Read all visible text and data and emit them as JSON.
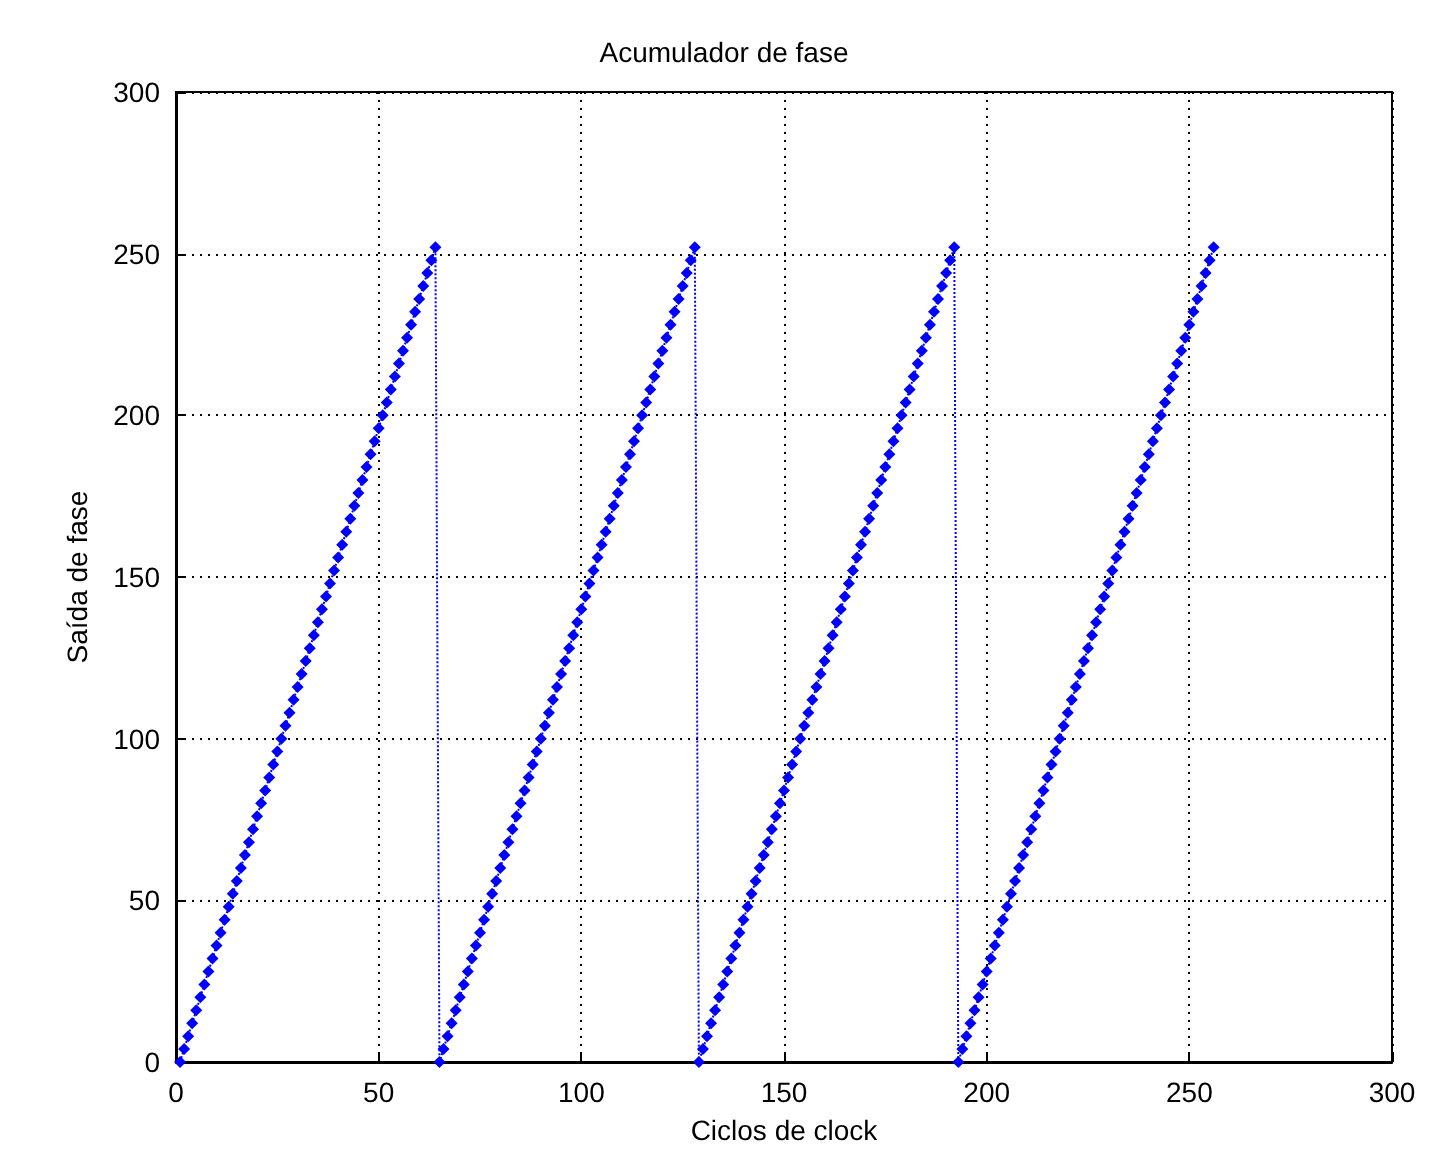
{
  "chart_data": {
    "type": "line",
    "title": "Acumulador de fase",
    "xlabel": "Ciclos de clock",
    "ylabel": "Saída de fase",
    "x": [
      1,
      2,
      3,
      4,
      5,
      6,
      7,
      8,
      9,
      10,
      11,
      12,
      13,
      14,
      15,
      16,
      17,
      18,
      19,
      20,
      21,
      22,
      23,
      24,
      25,
      26,
      27,
      28,
      29,
      30,
      31,
      32,
      33,
      34,
      35,
      36,
      37,
      38,
      39,
      40,
      41,
      42,
      43,
      44,
      45,
      46,
      47,
      48,
      49,
      50,
      51,
      52,
      53,
      54,
      55,
      56,
      57,
      58,
      59,
      60,
      61,
      62,
      63,
      64,
      65,
      66,
      67,
      68,
      69,
      70,
      71,
      72,
      73,
      74,
      75,
      76,
      77,
      78,
      79,
      80,
      81,
      82,
      83,
      84,
      85,
      86,
      87,
      88,
      89,
      90,
      91,
      92,
      93,
      94,
      95,
      96,
      97,
      98,
      99,
      100,
      101,
      102,
      103,
      104,
      105,
      106,
      107,
      108,
      109,
      110,
      111,
      112,
      113,
      114,
      115,
      116,
      117,
      118,
      119,
      120,
      121,
      122,
      123,
      124,
      125,
      126,
      127,
      128,
      129,
      130,
      131,
      132,
      133,
      134,
      135,
      136,
      137,
      138,
      139,
      140,
      141,
      142,
      143,
      144,
      145,
      146,
      147,
      148,
      149,
      150,
      151,
      152,
      153,
      154,
      155,
      156,
      157,
      158,
      159,
      160,
      161,
      162,
      163,
      164,
      165,
      166,
      167,
      168,
      169,
      170,
      171,
      172,
      173,
      174,
      175,
      176,
      177,
      178,
      179,
      180,
      181,
      182,
      183,
      184,
      185,
      186,
      187,
      188,
      189,
      190,
      191,
      192,
      193,
      194,
      195,
      196,
      197,
      198,
      199,
      200,
      201,
      202,
      203,
      204,
      205,
      206,
      207,
      208,
      209,
      210,
      211,
      212,
      213,
      214,
      215,
      216,
      217,
      218,
      219,
      220,
      221,
      222,
      223,
      224,
      225,
      226,
      227,
      228,
      229,
      230,
      231,
      232,
      233,
      234,
      235,
      236,
      237,
      238,
      239,
      240,
      241,
      242,
      243,
      244,
      245,
      246,
      247,
      248,
      249,
      250,
      251,
      252,
      253,
      254,
      255,
      256
    ],
    "series": [
      {
        "color": "#0000ff",
        "values": [
          0,
          4,
          8,
          12,
          16,
          20,
          24,
          28,
          32,
          36,
          40,
          44,
          48,
          52,
          56,
          60,
          64,
          68,
          72,
          76,
          80,
          84,
          88,
          92,
          96,
          100,
          104,
          108,
          112,
          116,
          120,
          124,
          128,
          132,
          136,
          140,
          144,
          148,
          152,
          156,
          160,
          164,
          168,
          172,
          176,
          180,
          184,
          188,
          192,
          196,
          200,
          204,
          208,
          212,
          216,
          220,
          224,
          228,
          232,
          236,
          240,
          244,
          248,
          252,
          0,
          4,
          8,
          12,
          16,
          20,
          24,
          28,
          32,
          36,
          40,
          44,
          48,
          52,
          56,
          60,
          64,
          68,
          72,
          76,
          80,
          84,
          88,
          92,
          96,
          100,
          104,
          108,
          112,
          116,
          120,
          124,
          128,
          132,
          136,
          140,
          144,
          148,
          152,
          156,
          160,
          164,
          168,
          172,
          176,
          180,
          184,
          188,
          192,
          196,
          200,
          204,
          208,
          212,
          216,
          220,
          224,
          228,
          232,
          236,
          240,
          244,
          248,
          252,
          0,
          4,
          8,
          12,
          16,
          20,
          24,
          28,
          32,
          36,
          40,
          44,
          48,
          52,
          56,
          60,
          64,
          68,
          72,
          76,
          80,
          84,
          88,
          92,
          96,
          100,
          104,
          108,
          112,
          116,
          120,
          124,
          128,
          132,
          136,
          140,
          144,
          148,
          152,
          156,
          160,
          164,
          168,
          172,
          176,
          180,
          184,
          188,
          192,
          196,
          200,
          204,
          208,
          212,
          216,
          220,
          224,
          228,
          232,
          236,
          240,
          244,
          248,
          252,
          0,
          4,
          8,
          12,
          16,
          20,
          24,
          28,
          32,
          36,
          40,
          44,
          48,
          52,
          56,
          60,
          64,
          68,
          72,
          76,
          80,
          84,
          88,
          92,
          96,
          100,
          104,
          108,
          112,
          116,
          120,
          124,
          128,
          132,
          136,
          140,
          144,
          148,
          152,
          156,
          160,
          164,
          168,
          172,
          176,
          180,
          184,
          188,
          192,
          196,
          200,
          204,
          208,
          212,
          216,
          220,
          224,
          228,
          232,
          236,
          240,
          244,
          248,
          252
        ]
      }
    ],
    "xlim": [
      0,
      300
    ],
    "xticks": [
      0,
      50,
      100,
      150,
      200,
      250,
      300
    ],
    "ylim": [
      0,
      300
    ],
    "yticks": [
      0,
      50,
      100,
      150,
      200,
      250,
      300
    ],
    "grid": true,
    "marker": "diamond",
    "line_style": "dotted"
  }
}
